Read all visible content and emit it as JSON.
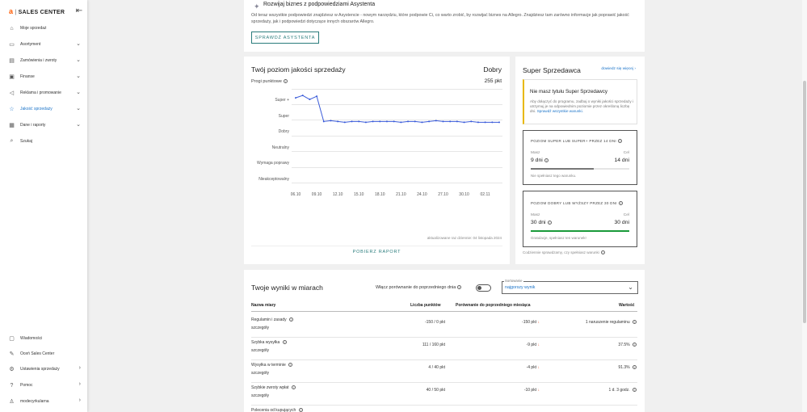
{
  "sidebar": {
    "logo_brand": "a",
    "logo_text": "SALES CENTER",
    "items": [
      {
        "label": "Moje sprzedaż",
        "icon": "home-icon"
      },
      {
        "label": "Asortyment",
        "icon": "box-icon"
      },
      {
        "label": "Zamówienia i zwroty",
        "icon": "orders-icon"
      },
      {
        "label": "Finanse",
        "icon": "finance-icon"
      },
      {
        "label": "Reklama i promowanie",
        "icon": "megaphone-icon"
      },
      {
        "label": "Jakość sprzedaży",
        "icon": "star-icon"
      },
      {
        "label": "Dane i raporty",
        "icon": "chart-icon"
      },
      {
        "label": "Szukaj",
        "icon": "search-icon"
      }
    ],
    "bottom_items": [
      {
        "label": "Wiadomości",
        "icon": "message-icon"
      },
      {
        "label": "Oceń Sales Center",
        "icon": "rate-icon"
      },
      {
        "label": "Ustawienia sprzedaży",
        "icon": "gear-icon"
      },
      {
        "label": "Pomoc",
        "icon": "help-icon"
      },
      {
        "label": "modecyrkularna",
        "icon": "user-icon"
      }
    ]
  },
  "assistant_banner": {
    "title": "Rozwijaj biznes z podpowiedziami Asystenta",
    "text": "Od teraz wszystkie podpowiedzi znajdziesz w Asystencie - nowym narzędziu, które podpowie Ci, co warto zrobić, by rozwijać biznes na Allegro. Znajdziesz tam zarówno informacje jak poprawić jakość sprzedaży, jak i podpowiedzi dotyczące innych obszarów Allegro.",
    "button": "SPRAWDŹ ASYSTENTA"
  },
  "quality": {
    "title": "Twój poziom jakości sprzedaży",
    "level": "Dobry",
    "thresholds_label": "Progi punktowe",
    "points": "255 pkt",
    "updated": "aktualizowane raz dziennie: 04 listopada 2024",
    "report_button": "POBIERZ RAPORT",
    "y_labels": [
      "Super +",
      "Super",
      "Dobry",
      "Neutralny",
      "Wymaga poprawy",
      "Nieakceptowalny"
    ]
  },
  "chart_data": {
    "type": "line",
    "x": [
      "06.10",
      "07.10",
      "08.10",
      "09.10",
      "10.10",
      "11.10",
      "12.10",
      "13.10",
      "14.10",
      "15.10",
      "16.10",
      "17.10",
      "18.10",
      "19.10",
      "20.10",
      "21.10",
      "22.10",
      "23.10",
      "24.10",
      "25.10",
      "26.10",
      "27.10",
      "28.10",
      "29.10",
      "30.10",
      "31.10",
      "01.11",
      "02.11",
      "03.11",
      "04.11"
    ],
    "x_tick_labels": [
      "06.10",
      "09.10",
      "12.10",
      "15.10",
      "18.10",
      "21.10",
      "24.10",
      "27.10",
      "30.10",
      "02.11"
    ],
    "y_categories": [
      "Nieakceptowalny",
      "Wymaga poprawy",
      "Neutralny",
      "Dobry",
      "Super",
      "Super +"
    ],
    "values": [
      0.2,
      0.35,
      0.1,
      0.3,
      -1.3,
      -1.25,
      -1.3,
      -1.35,
      -1.3,
      -1.3,
      -1.35,
      -1.3,
      -1.3,
      -1.3,
      -1.3,
      -1.35,
      -1.3,
      -1.3,
      -1.35,
      -1.3,
      -1.25,
      -1.3,
      -1.3,
      -1.3,
      -1.35,
      -1.3,
      -1.35,
      -1.35,
      -1.35,
      -1.35
    ],
    "values_note_unit": "offset relative to Super+ band",
    "series_color": "#3a5bd9",
    "grid": true
  },
  "super_seller": {
    "title": "Super Sprzedawca",
    "learn_more": "dowiedz się więcej",
    "no_title_heading": "Nie masz tytułu Super Sprzedawcy",
    "no_title_text": "Aby dołączyć do programu, zadbaj o wyniki jakości sprzedaży i utrzymuj je na odpowiednim poziomie przez określoną liczbę dni.",
    "no_title_link": "Sprawdź wszystkie warunki.",
    "box1": {
      "title": "POZIOM SUPER LUB SUPER+ PRZEZ 14 DNI",
      "have_label": "Masz",
      "have_value": "9 dni",
      "goal_label": "Cel",
      "goal_value": "14 dni",
      "progress": 0.64,
      "note": "Nie spełniasz tego warunku.",
      "bar_color": "#777777"
    },
    "box2": {
      "title": "POZIOM DOBRY LUB WYŻSZY PRZEZ 30 DNI",
      "have_label": "Masz",
      "have_value": "30 dni",
      "goal_label": "Cel",
      "goal_value": "30 dni",
      "progress": 1.0,
      "note": "Gratulacje, spełniasz ten warunek!",
      "bar_color": "#1a9a3a"
    },
    "footer": "Codziennie sprawdzamy, czy spełniasz warunki"
  },
  "results": {
    "title": "Twoje wyniki w miarach",
    "compare_label": "Włącz porównanie do poprzedniego dnia",
    "sort_label": "Sortowanie",
    "sort_value": "najgorszy wynik",
    "headers": [
      "Nazwa miary",
      "Liczba punktów",
      "Porównanie do poprzedniego miesiąca",
      "Wartość"
    ],
    "details_label": "szczegóły",
    "rows": [
      {
        "name": "Regulamin i zasady",
        "points": "-150 / 0 pkt",
        "compare": "-150 pkt",
        "value": "1 naruszenie regulaminu"
      },
      {
        "name": "Szybka wysyłka",
        "points": "111 / 160 pkt",
        "compare": "-9 pkt",
        "value": "37.5%"
      },
      {
        "name": "Wysyłka w terminie",
        "points": "4 / 40 pkt",
        "compare": "-4 pkt",
        "value": "91.3%"
      },
      {
        "name": "Szybkie zwroty wpłat",
        "points": "40 / 50 pkt",
        "compare": "-10 pkt",
        "value": "1 d. 3 godz."
      },
      {
        "name": "Polecenia od kupujących",
        "points": "",
        "compare": "",
        "value": ""
      }
    ]
  }
}
